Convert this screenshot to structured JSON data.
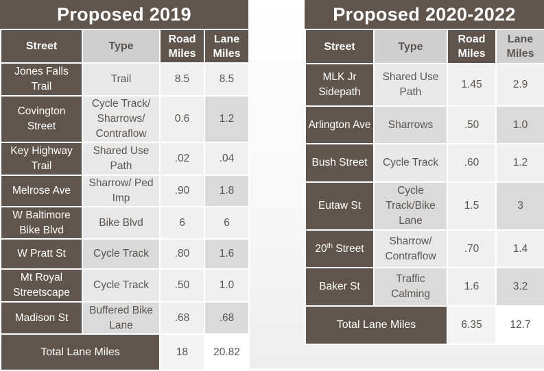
{
  "left": {
    "title": "Proposed 2019",
    "headers": {
      "street": "Street",
      "type": "Type",
      "road": "Road Miles",
      "lane": "Lane Miles"
    },
    "rows": [
      {
        "street": "Jones Falls Trail",
        "type": "Trail",
        "road": "8.5",
        "lane": "8.5"
      },
      {
        "street": "Covington Street",
        "type": "Cycle Track/ Sharrows/ Contraflow",
        "road": "0.6",
        "lane": "1.2"
      },
      {
        "street": "Key Highway Trail",
        "type": "Shared Use Path",
        "road": ".02",
        "lane": ".04"
      },
      {
        "street": "Melrose Ave",
        "type": "Sharrow/ Ped Imp",
        "road": ".90",
        "lane": "1.8"
      },
      {
        "street": "W Baltimore Bike Blvd",
        "type": "Bike Blvd",
        "road": "6",
        "lane": "6"
      },
      {
        "street": "W Pratt St",
        "type": "Cycle Track",
        "road": ".80",
        "lane": "1.6"
      },
      {
        "street": "Mt Royal Streetscape",
        "type": "Cycle Track",
        "road": ".50",
        "lane": "1.0"
      },
      {
        "street": "Madison St",
        "type": "Buffered Bike Lane",
        "road": ".68",
        "lane": ".68"
      }
    ],
    "total": {
      "label": "Total Lane Miles",
      "road": "18",
      "lane": "20.82"
    }
  },
  "right": {
    "title": "Proposed 2020-2022",
    "headers": {
      "street": "Street",
      "type": "Type",
      "road": "Road Miles",
      "lane": "Lane Miles"
    },
    "rows": [
      {
        "street": "MLK Jr Sidepath",
        "type": "Shared Use Path",
        "road": "1.45",
        "lane": "2.9"
      },
      {
        "street": "Arlington Ave",
        "type": "Sharrows",
        "road": ".50",
        "lane": "1.0"
      },
      {
        "street": "Bush Street",
        "type": "Cycle Track",
        "road": ".60",
        "lane": "1.2"
      },
      {
        "street": "Eutaw St",
        "type": "Cycle Track/Bike Lane",
        "road": "1.5",
        "lane": "3"
      },
      {
        "street_num": "20",
        "street_sup": "th",
        "street_rest": " Street",
        "type": "Sharrow/ Contraflow",
        "road": ".70",
        "lane": "1.4"
      },
      {
        "street": "Baker St",
        "type": "Traffic Calming",
        "road": "1.6",
        "lane": "3.2"
      }
    ],
    "total": {
      "label": "Total Lane Miles",
      "road": "6.35",
      "lane": "12.7"
    }
  }
}
